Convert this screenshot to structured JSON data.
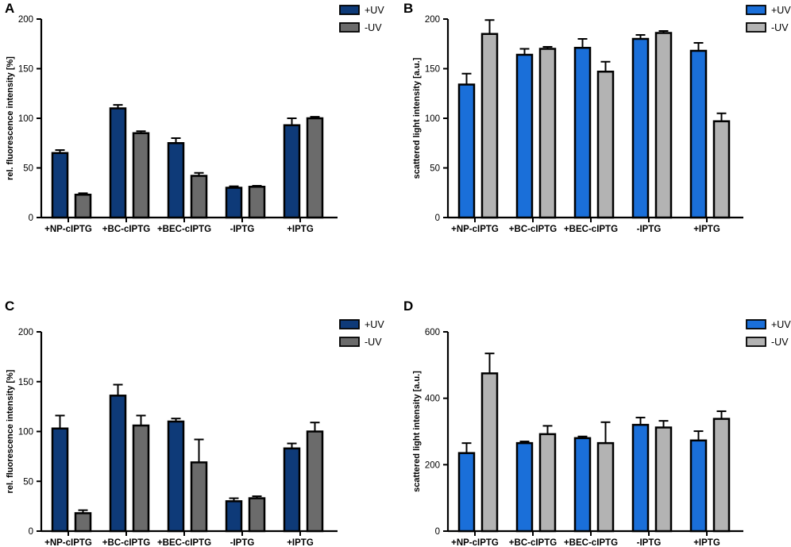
{
  "chart_data": [
    {
      "panel": "A",
      "type": "bar",
      "ylabel": "rel. fluorescence intensity [%]",
      "xlabel": "",
      "ylim": [
        0,
        200
      ],
      "yticks": [
        0,
        50,
        100,
        150,
        200
      ],
      "categories": [
        "+NP-cIPTG",
        "+BC-cIPTG",
        "+BEC-cIPTG",
        "-IPTG",
        "+IPTG"
      ],
      "legend_position": "top-right",
      "series": [
        {
          "name": "+UV",
          "color": "#0e3a78",
          "values": [
            65,
            110,
            75,
            30,
            93
          ],
          "errors": [
            3,
            3.5,
            5,
            1.5,
            7
          ]
        },
        {
          "name": "-UV",
          "color": "#6b6b6b",
          "values": [
            23,
            85,
            42,
            31,
            100
          ],
          "errors": [
            1.5,
            2,
            3,
            1,
            1.5
          ]
        }
      ]
    },
    {
      "panel": "B",
      "type": "bar",
      "ylabel": "scattered light intensity [a.u.]",
      "xlabel": "",
      "ylim": [
        0,
        200
      ],
      "yticks": [
        0,
        50,
        100,
        150,
        200
      ],
      "categories": [
        "+NP-cIPTG",
        "+BC-cIPTG",
        "+BEC-cIPTG",
        "-IPTG",
        "+IPTG"
      ],
      "legend_position": "top-right",
      "series": [
        {
          "name": "+UV",
          "color": "#1a6fd9",
          "values": [
            134,
            164,
            171,
            180,
            168
          ],
          "errors": [
            11,
            6,
            9,
            4,
            8
          ]
        },
        {
          "name": "-UV",
          "color": "#b3b3b3",
          "values": [
            185,
            170,
            147,
            186,
            97
          ],
          "errors": [
            14,
            2,
            10,
            2,
            8
          ]
        }
      ]
    },
    {
      "panel": "C",
      "type": "bar",
      "ylabel": "rel. fluorescence intensity [%]",
      "xlabel": "",
      "ylim": [
        0,
        200
      ],
      "yticks": [
        0,
        50,
        100,
        150,
        200
      ],
      "categories": [
        "+NP-cIPTG",
        "+BC-cIPTG",
        "+BEC-cIPTG",
        "-IPTG",
        "+IPTG"
      ],
      "legend_position": "top-right",
      "series": [
        {
          "name": "+UV",
          "color": "#0e3a78",
          "values": [
            103,
            136,
            110,
            30,
            83
          ],
          "errors": [
            13,
            11,
            3,
            3,
            5
          ]
        },
        {
          "name": "-UV",
          "color": "#6b6b6b",
          "values": [
            18,
            106,
            69,
            33,
            100
          ],
          "errors": [
            3,
            10,
            23,
            2,
            9
          ]
        }
      ]
    },
    {
      "panel": "D",
      "type": "bar",
      "ylabel": "scattered light intensity [a.u.]",
      "xlabel": "",
      "ylim": [
        0,
        600
      ],
      "yticks": [
        0,
        200,
        400,
        600
      ],
      "categories": [
        "+NP-cIPTG",
        "+BC-cIPTG",
        "+BEC-cIPTG",
        "-IPTG",
        "+IPTG"
      ],
      "legend_position": "top-right",
      "series": [
        {
          "name": "+UV",
          "color": "#1a6fd9",
          "values": [
            235,
            265,
            280,
            320,
            273
          ],
          "errors": [
            30,
            5,
            5,
            22,
            28
          ]
        },
        {
          "name": "-UV",
          "color": "#b3b3b3",
          "values": [
            475,
            292,
            265,
            312,
            338
          ],
          "errors": [
            60,
            25,
            63,
            20,
            23
          ]
        }
      ]
    }
  ]
}
